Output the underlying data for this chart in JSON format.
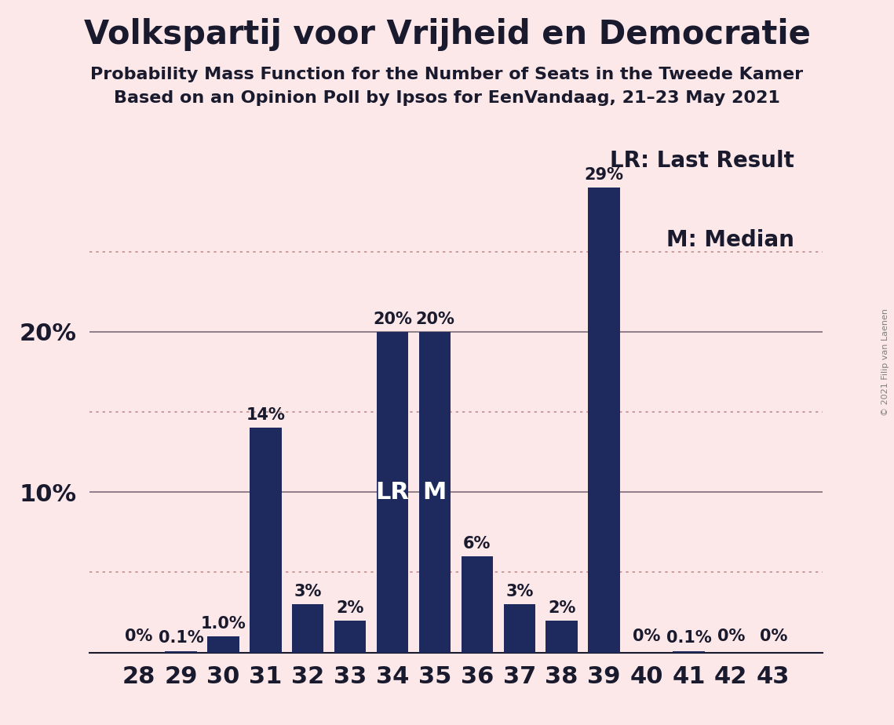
{
  "title": "Volkspartij voor Vrijheid en Democratie",
  "subtitle1": "Probability Mass Function for the Number of Seats in the Tweede Kamer",
  "subtitle2": "Based on an Opinion Poll by Ipsos for EenVandaag, 21–23 May 2021",
  "copyright": "© 2021 Filip van Laenen",
  "seats": [
    28,
    29,
    30,
    31,
    32,
    33,
    34,
    35,
    36,
    37,
    38,
    39,
    40,
    41,
    42,
    43
  ],
  "probabilities": [
    0.0,
    0.1,
    1.0,
    14.0,
    3.0,
    2.0,
    20.0,
    20.0,
    6.0,
    3.0,
    2.0,
    29.0,
    0.0,
    0.1,
    0.0,
    0.0
  ],
  "bar_labels": [
    "0%",
    "0.1%",
    "1.0%",
    "14%",
    "3%",
    "2%",
    "20%",
    "20%",
    "6%",
    "3%",
    "2%",
    "29%",
    "0%",
    "0.1%",
    "0%",
    "0%"
  ],
  "bar_color": "#1e2a5e",
  "background_color": "#fce8e8",
  "lr_seat": 34,
  "median_seat": 35,
  "lr_label": "LR",
  "median_label": "M",
  "legend_lr": "LR: Last Result",
  "legend_m": "M: Median",
  "solid_yticks": [
    10,
    20
  ],
  "dotted_yticks": [
    5,
    15,
    25
  ],
  "ytick_labels_at": [
    10,
    20
  ],
  "ytick_labels": [
    "10%",
    "20%"
  ],
  "ylim_max": 33,
  "title_fontsize": 30,
  "subtitle_fontsize": 16,
  "bar_label_fontsize": 15,
  "axis_tick_fontsize": 22,
  "legend_fontsize": 20,
  "lr_m_fontsize": 22,
  "text_color": "#1a1a2e",
  "grid_solid_color": "#2a1a2e",
  "grid_dotted_color": "#c09090"
}
